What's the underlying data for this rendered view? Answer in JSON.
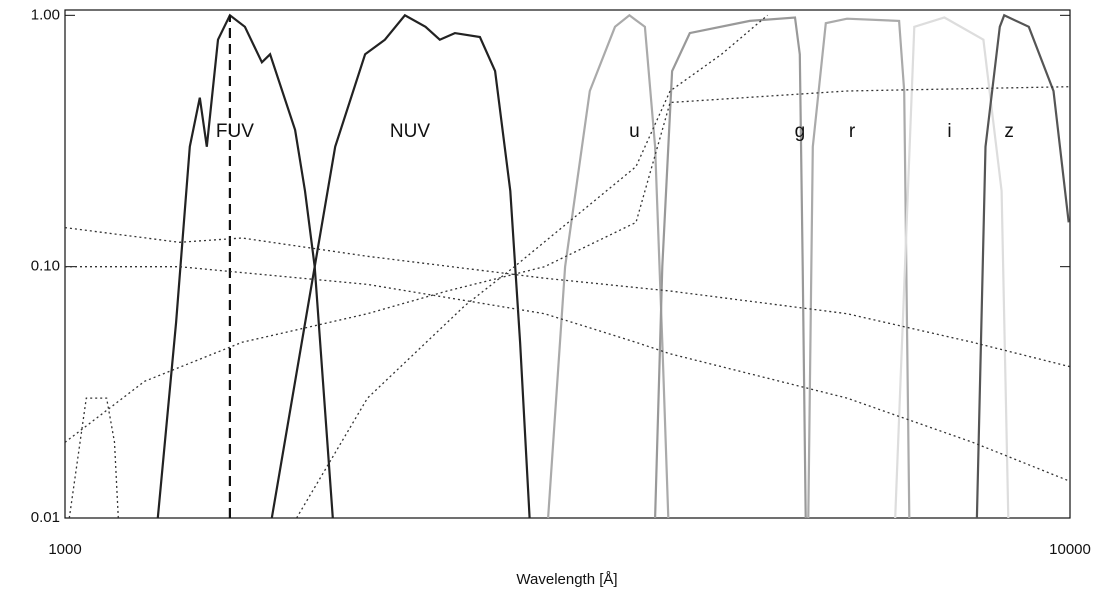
{
  "chart_data": {
    "type": "line",
    "xlabel": "Wavelength [Å]",
    "xlog": true,
    "ylog": true,
    "xlim": [
      1000,
      10000
    ],
    "ylim": [
      0.01,
      1.05
    ],
    "xticks": [
      1000,
      10000
    ],
    "yticks": [
      {
        "value": 0.01,
        "label": "0.01"
      },
      {
        "value": 0.1,
        "label": "0.10"
      },
      {
        "value": 1,
        "label": "1.00"
      }
    ],
    "series": [
      {
        "name": "FUV",
        "color": "#222222",
        "style": "solid",
        "x": [
          1237,
          1290,
          1331,
          1362,
          1384,
          1420,
          1459,
          1510,
          1570,
          1600,
          1694,
          1733,
          1772,
          1847
        ],
        "values": [
          0.01,
          0.06,
          0.3,
          0.47,
          0.3,
          0.8,
          1.0,
          0.9,
          0.65,
          0.7,
          0.35,
          0.2,
          0.1,
          0.01
        ]
      },
      {
        "name": "NUV",
        "color": "#222222",
        "style": "solid",
        "x": [
          1606,
          1772,
          1857,
          1989,
          2081,
          2179,
          2284,
          2360,
          2443,
          2587,
          2679,
          2774,
          2837,
          2899
        ],
        "values": [
          0.01,
          0.1,
          0.3,
          0.7,
          0.8,
          1.0,
          0.9,
          0.8,
          0.85,
          0.82,
          0.6,
          0.2,
          0.05,
          0.01
        ]
      },
      {
        "name": "u",
        "color": "#aaaaaa",
        "style": "solid",
        "x": [
          3025,
          3145,
          3328,
          3526,
          3644,
          3776,
          3865,
          3929,
          3984
        ],
        "values": [
          0.01,
          0.1,
          0.5,
          0.9,
          1.0,
          0.9,
          0.3,
          0.05,
          0.01
        ]
      },
      {
        "name": "g",
        "color": "#999999",
        "style": "solid",
        "x": [
          3865,
          3929,
          4019,
          4185,
          4802,
          5325,
          5385,
          5421,
          5458
        ],
        "values": [
          0.01,
          0.1,
          0.6,
          0.85,
          0.95,
          0.98,
          0.7,
          0.1,
          0.01
        ]
      },
      {
        "name": "r",
        "color": "#aaaaaa",
        "style": "solid",
        "x": [
          5490,
          5547,
          5715,
          6000,
          6760,
          6840,
          6920
        ],
        "values": [
          0.01,
          0.3,
          0.93,
          0.97,
          0.95,
          0.5,
          0.01
        ]
      },
      {
        "name": "i",
        "color": "#dddddd",
        "style": "solid",
        "x": [
          6700,
          7000,
          7500,
          8200,
          8550,
          8682
        ],
        "values": [
          0.01,
          0.9,
          0.98,
          0.8,
          0.2,
          0.01
        ]
      },
      {
        "name": "z",
        "color": "#555555",
        "style": "solid",
        "x": [
          8080,
          8240,
          8515,
          8600,
          9100,
          9630,
          9970
        ],
        "values": [
          0.01,
          0.3,
          0.9,
          1.0,
          0.9,
          0.5,
          0.15
        ]
      },
      {
        "color": "#111111",
        "style": "dashed",
        "x": [
          1459,
          1459
        ],
        "values": [
          0.01,
          1.0
        ]
      },
      {
        "color": "#333333",
        "style": "dotted",
        "x": [
          1000,
          1300,
          1500,
          2000,
          3000,
          4000,
          6000,
          8000,
          10000
        ],
        "values": [
          0.143,
          0.125,
          0.13,
          0.11,
          0.09,
          0.08,
          0.065,
          0.05,
          0.04
        ]
      },
      {
        "color": "#333333",
        "style": "dotted",
        "x": [
          1000,
          1300,
          2000,
          3000,
          3700,
          4000,
          6000,
          8000,
          10000
        ],
        "values": [
          0.1,
          0.1,
          0.085,
          0.065,
          0.05,
          0.045,
          0.03,
          0.02,
          0.014
        ]
      },
      {
        "color": "#333333",
        "style": "dotted",
        "x": [
          1700,
          2000,
          2500,
          2800,
          3700,
          4000,
          4500,
          5000
        ],
        "values": [
          0.01,
          0.03,
          0.07,
          0.1,
          0.25,
          0.5,
          0.7,
          1.0
        ]
      },
      {
        "color": "#333333",
        "style": "dotted",
        "x": [
          1000,
          1200,
          1500,
          2000,
          2400,
          3000,
          3700,
          4000,
          6000,
          10000
        ],
        "values": [
          0.02,
          0.035,
          0.05,
          0.065,
          0.08,
          0.1,
          0.15,
          0.45,
          0.5,
          0.52
        ]
      },
      {
        "color": "#333333",
        "style": "dotted",
        "x": [
          1010,
          1050,
          1100,
          1120,
          1130
        ],
        "values": [
          0.01,
          0.03,
          0.03,
          0.02,
          0.01
        ]
      }
    ]
  }
}
